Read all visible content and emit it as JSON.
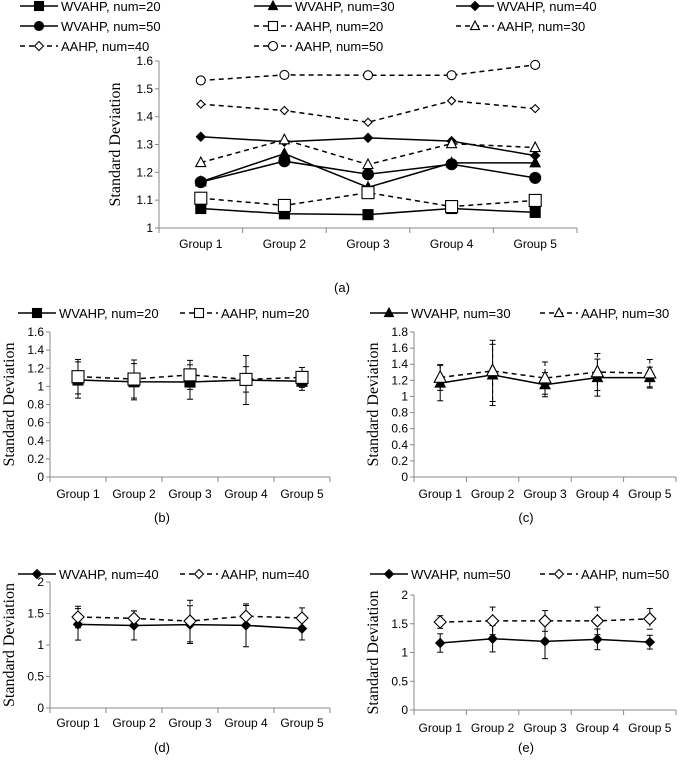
{
  "chart_data": [
    {
      "panel": "(a)",
      "type": "line",
      "ylabel": "Standard Deviation",
      "ylim": [
        1,
        1.6
      ],
      "yticks": [
        "1",
        "1.1",
        "1.2",
        "1.3",
        "1.4",
        "1.5",
        "1.6"
      ],
      "yticks_v": [
        1,
        1.1,
        1.2,
        1.3,
        1.4,
        1.5,
        1.6
      ],
      "categories": [
        "Group 1",
        "Group 2",
        "Group 3",
        "Group 4",
        "Group 5"
      ],
      "legend": "top",
      "grid": false,
      "series": [
        {
          "name": "WVAHP, num=20",
          "marker": "square",
          "filled": true,
          "dashed": false,
          "values": [
            1.07,
            1.051,
            1.048,
            1.07,
            1.056
          ]
        },
        {
          "name": "WVAHP, num=30",
          "marker": "triangle",
          "filled": true,
          "dashed": false,
          "values": [
            1.166,
            1.267,
            1.146,
            1.234,
            1.234
          ]
        },
        {
          "name": "WVAHP, num=40",
          "marker": "diamond",
          "filled": true,
          "dashed": false,
          "values": [
            1.328,
            1.31,
            1.324,
            1.312,
            1.26
          ]
        },
        {
          "name": "WVAHP, num=50",
          "marker": "circle",
          "filled": true,
          "dashed": false,
          "values": [
            1.165,
            1.24,
            1.193,
            1.229,
            1.18
          ]
        },
        {
          "name": "AAHP, num=20",
          "marker": "square",
          "filled": false,
          "dashed": true,
          "values": [
            1.107,
            1.081,
            1.127,
            1.077,
            1.099
          ]
        },
        {
          "name": "AAHP, num=30",
          "marker": "triangle",
          "filled": false,
          "dashed": true,
          "values": [
            1.235,
            1.317,
            1.228,
            1.303,
            1.289
          ]
        },
        {
          "name": "AAHP, num=40",
          "marker": "diamond",
          "filled": false,
          "dashed": true,
          "values": [
            1.445,
            1.422,
            1.38,
            1.457,
            1.429
          ]
        },
        {
          "name": "AAHP, num=50",
          "marker": "circle",
          "filled": false,
          "dashed": true,
          "values": [
            1.53,
            1.55,
            1.549,
            1.549,
            1.586
          ]
        }
      ]
    },
    {
      "panel": "(b)",
      "type": "line",
      "ylabel": "Standard Deviation",
      "ylim": [
        0,
        1.6
      ],
      "yticks": [
        "0",
        "0.2",
        "0.4",
        "0.6",
        "0.8",
        "1",
        "1.2",
        "1.4",
        "1.6"
      ],
      "yticks_v": [
        0,
        0.2,
        0.4,
        0.6,
        0.8,
        1,
        1.2,
        1.4,
        1.6
      ],
      "categories": [
        "Group 1",
        "Group 2",
        "Group 3",
        "Group 4",
        "Group 5"
      ],
      "legend": "top",
      "series": [
        {
          "name": "WVAHP, num=20",
          "marker": "square",
          "filled": true,
          "dashed": false,
          "values": [
            1.07,
            1.051,
            1.048,
            1.07,
            1.056
          ],
          "error": [
            0.2,
            0.2,
            0.19,
            0.27,
            0.1
          ]
        },
        {
          "name": "AAHP, num=20",
          "marker": "square",
          "filled": false,
          "dashed": true,
          "values": [
            1.107,
            1.081,
            1.127,
            1.077,
            1.099
          ],
          "error": [
            0.19,
            0.21,
            0.16,
            0.14,
            0.11
          ]
        }
      ]
    },
    {
      "panel": "(c)",
      "type": "line",
      "ylabel": "Standard Deviation",
      "ylim": [
        0,
        1.8
      ],
      "yticks": [
        "0",
        "0.2",
        "0.4",
        "0.6",
        "0.8",
        "1",
        "1.2",
        "1.4",
        "1.6",
        "1.8"
      ],
      "yticks_v": [
        0,
        0.2,
        0.4,
        0.6,
        0.8,
        1,
        1.2,
        1.4,
        1.6,
        1.8
      ],
      "categories": [
        "Group 1",
        "Group 2",
        "Group 3",
        "Group 4",
        "Group 5"
      ],
      "legend": "top",
      "series": [
        {
          "name": "WVAHP, num=30",
          "marker": "triangle",
          "filled": true,
          "dashed": false,
          "values": [
            1.166,
            1.267,
            1.146,
            1.234,
            1.234
          ],
          "error": [
            0.22,
            0.38,
            0.15,
            0.23,
            0.13
          ]
        },
        {
          "name": "AAHP, num=30",
          "marker": "triangle",
          "filled": false,
          "dashed": true,
          "values": [
            1.235,
            1.317,
            1.228,
            1.303,
            1.289
          ],
          "error": [
            0.16,
            0.38,
            0.2,
            0.23,
            0.17
          ]
        }
      ]
    },
    {
      "panel": "(d)",
      "type": "line",
      "ylabel": "Standard Deviation",
      "ylim": [
        0,
        2
      ],
      "yticks": [
        "0",
        "0.5",
        "1",
        "1.5",
        "2"
      ],
      "yticks_v": [
        0,
        0.5,
        1,
        1.5,
        2
      ],
      "categories": [
        "Group 1",
        "Group 2",
        "Group 3",
        "Group 4",
        "Group 5"
      ],
      "legend": "top",
      "series": [
        {
          "name": "WVAHP, num=40",
          "marker": "diamond",
          "filled": true,
          "dashed": false,
          "values": [
            1.328,
            1.31,
            1.324,
            1.312,
            1.26
          ],
          "error": [
            0.25,
            0.23,
            0.3,
            0.34,
            0.18
          ]
        },
        {
          "name": "AAHP, num=40",
          "marker": "diamond",
          "filled": false,
          "dashed": true,
          "values": [
            1.445,
            1.422,
            1.38,
            1.457,
            1.429
          ],
          "error": [
            0.17,
            0.12,
            0.33,
            0.17,
            0.16
          ]
        }
      ]
    },
    {
      "panel": "(e)",
      "type": "line",
      "ylabel": "Standard Deviation",
      "ylim": [
        0,
        2
      ],
      "yticks": [
        "0",
        "0.5",
        "1",
        "1.5",
        "2"
      ],
      "yticks_v": [
        0,
        0.5,
        1,
        1.5,
        2
      ],
      "categories": [
        "Group 1",
        "Group 2",
        "Group 3",
        "Group 4",
        "Group 5"
      ],
      "legend": "top",
      "series": [
        {
          "name": "WVAHP, num=50",
          "marker": "diamond",
          "filled": true,
          "dashed": false,
          "values": [
            1.165,
            1.24,
            1.193,
            1.229,
            1.18
          ],
          "error": [
            0.16,
            0.23,
            0.3,
            0.18,
            0.12
          ]
        },
        {
          "name": "AAHP, num=50",
          "marker": "diamond",
          "filled": false,
          "dashed": true,
          "values": [
            1.53,
            1.55,
            1.549,
            1.549,
            1.586
          ],
          "error": [
            0.11,
            0.24,
            0.18,
            0.24,
            0.18
          ]
        }
      ]
    }
  ]
}
